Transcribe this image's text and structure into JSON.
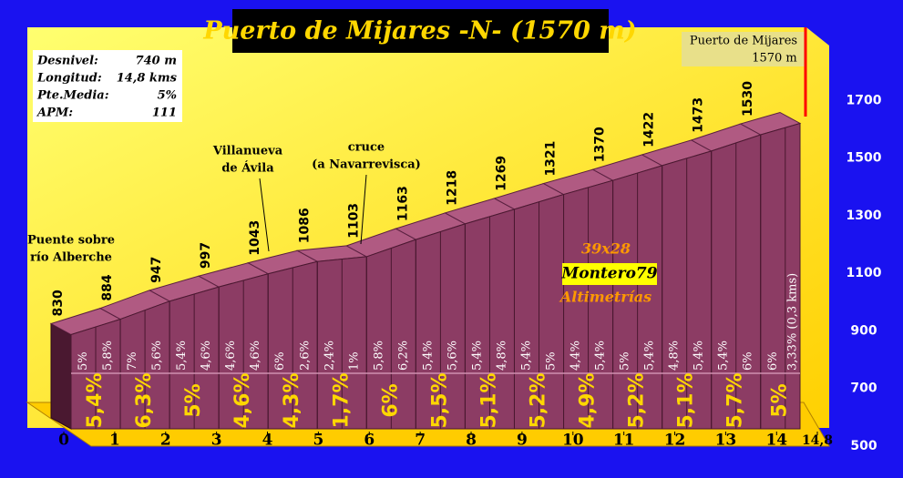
{
  "chart_data": {
    "type": "elevation-profile",
    "title": "Puerto de Mijares -N- (1570 m)",
    "stats": [
      [
        "Desnivel:",
        "740 m"
      ],
      [
        "Longitud:",
        "14,8 kms"
      ],
      [
        "Pte.Media:",
        "5%"
      ],
      [
        "APM:",
        "111"
      ]
    ],
    "summit_label": [
      "Puerto de Mijares",
      "1570 m"
    ],
    "x": [
      0,
      1,
      2,
      3,
      4,
      5,
      6,
      7,
      8,
      9,
      10,
      11,
      12,
      13,
      14,
      14.8
    ],
    "elevation": {
      "values": [
        830,
        884,
        947,
        997,
        1043,
        1086,
        1103,
        1163,
        1218,
        1269,
        1321,
        1370,
        1422,
        1473,
        1530,
        1570
      ],
      "value_labels": [
        "830",
        "884",
        "947",
        "997",
        "1043",
        "1086",
        "1103",
        "1163",
        "1218",
        "1269",
        "1321",
        "1370",
        "1422",
        "1473",
        "1530",
        null
      ]
    },
    "xlim": [
      0,
      14.8
    ],
    "xticks": [
      0,
      1,
      2,
      3,
      4,
      5,
      6,
      7,
      8,
      9,
      10,
      11,
      12,
      13,
      14,
      {
        "value": 14.8,
        "label": "14,8"
      }
    ],
    "ylim": [
      500,
      1900
    ],
    "yticks": [
      500,
      700,
      900,
      1100,
      1300,
      1500,
      1700
    ],
    "half_km_gradients": [
      "5%",
      "5,8%",
      "7%",
      "5,6%",
      "5,4%",
      "4,6%",
      "4,6%",
      "4,6%",
      "6%",
      "2,6%",
      "2,4%",
      "1%",
      "5,8%",
      "6,2%",
      "5,4%",
      "5,6%",
      "5,4%",
      "4,8%",
      "5,4%",
      "5%",
      "4,4%",
      "5,4%",
      "5%",
      "5,4%",
      "4,8%",
      "5,4%",
      "5,4%",
      "6%",
      "6%",
      "3,33% (0,3 kms)"
    ],
    "km_gradients": [
      "5,4%",
      "6,3%",
      "5%",
      "4,6%",
      "4,3%",
      "1,7%",
      "6%",
      "5,5%",
      "5,1%",
      "5,2%",
      "4,9%",
      "5,2%",
      "5,1%",
      "5,7%",
      "5%"
    ],
    "annotations": [
      [
        "Puente sobre",
        "río Alberche"
      ],
      [
        "Villanueva",
        "de Ávila"
      ],
      [
        "cruce",
        "(a Navarrevisca)"
      ]
    ],
    "watermark": [
      "39x28",
      "Montero79",
      "Altimetrías"
    ],
    "color": "#8c3c64"
  }
}
